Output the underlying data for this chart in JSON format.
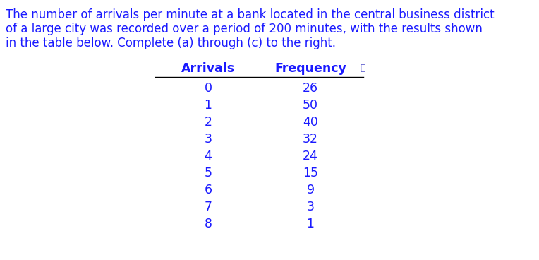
{
  "paragraph_lines": [
    "The number of arrivals per minute at a bank located in the central business district",
    "of a large city was recorded over a period of 200 minutes, with the results shown",
    "in the table below. Complete (a) through (c) to the right."
  ],
  "col1_header": "Arrivals",
  "col2_header": "Frequency",
  "arrivals": [
    0,
    1,
    2,
    3,
    4,
    5,
    6,
    7,
    8
  ],
  "frequencies": [
    26,
    50,
    40,
    32,
    24,
    15,
    9,
    3,
    1
  ],
  "text_color": "#1a1aff",
  "bg_color": "#ffffff",
  "font_size_para": 12.0,
  "font_size_table": 12.5,
  "font_size_header": 12.5
}
